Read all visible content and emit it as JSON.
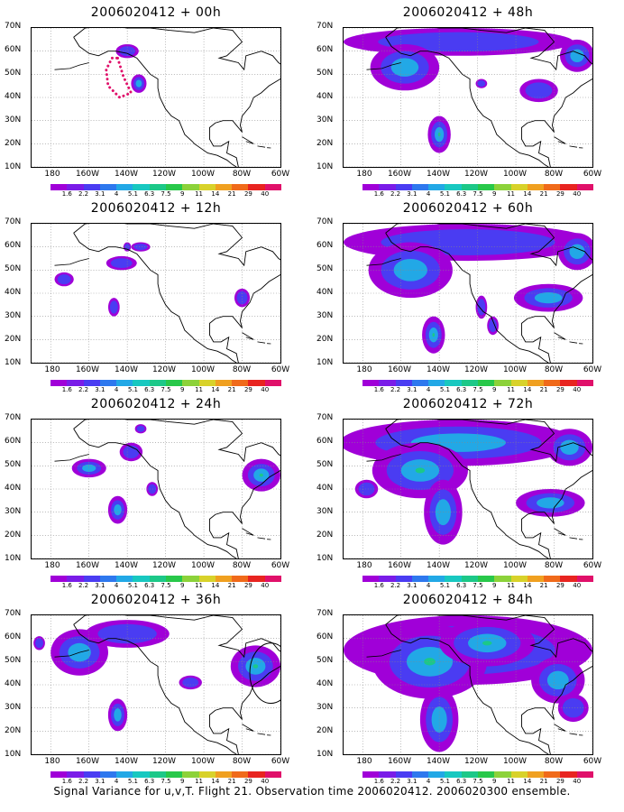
{
  "caption": "Signal Variance for u,v,T. Flight 21. Observation time 2006020412. 2006020300 ensemble.",
  "colors": {
    "scale": [
      "#a000d8",
      "#7a1ce8",
      "#4a3cf2",
      "#2e78ee",
      "#22a8e6",
      "#18c8c0",
      "#1cc888",
      "#28c84a",
      "#8cd23a",
      "#d8d22a",
      "#f0a020",
      "#f06a1a",
      "#e82420",
      "#e0106a"
    ],
    "land_outline": "#000000",
    "grid": "#888888",
    "flight_track": "#e0106a"
  },
  "colorbar_labels": [
    "1.6",
    "2.2",
    "3.1",
    "4",
    "5.1",
    "6.3",
    "7.5",
    "9",
    "11",
    "14",
    "21",
    "29",
    "40"
  ],
  "chart_data": [
    {
      "type": "heatmap",
      "title": "2006020412 + 00h",
      "x_ticks": [
        "180",
        "160W",
        "140W",
        "120W",
        "100W",
        "80W",
        "60W"
      ],
      "y_ticks": [
        "10N",
        "20N",
        "30N",
        "40N",
        "50N",
        "60N",
        "70N"
      ],
      "xlim": [
        -190,
        -60
      ],
      "ylim": [
        10,
        70
      ],
      "blobs": [
        [
          -140,
          60,
          6,
          3,
          1
        ],
        [
          -134,
          46,
          4,
          4,
          2
        ]
      ],
      "track": [
        [
          -145,
          57
        ],
        [
          -142,
          49
        ],
        [
          -138,
          42
        ],
        [
          -144,
          40
        ],
        [
          -150,
          45
        ],
        [
          -151,
          52
        ],
        [
          -148,
          57
        ],
        [
          -145,
          57
        ]
      ]
    },
    {
      "type": "heatmap",
      "title": "2006020412 + 12h",
      "x_ticks": [
        "180",
        "160W",
        "140W",
        "120W",
        "100W",
        "80W",
        "60W"
      ],
      "y_ticks": [
        "10N",
        "20N",
        "30N",
        "40N",
        "50N",
        "60N",
        "70N"
      ],
      "xlim": [
        -190,
        -60
      ],
      "ylim": [
        10,
        70
      ],
      "blobs": [
        [
          -173,
          46,
          5,
          3,
          1
        ],
        [
          -147,
          34,
          3,
          4,
          1
        ],
        [
          -143,
          53,
          8,
          3,
          1
        ],
        [
          -133,
          60,
          5,
          2,
          1
        ],
        [
          -80,
          38,
          4,
          4,
          1
        ],
        [
          -140,
          60,
          2,
          2,
          1
        ]
      ]
    },
    {
      "type": "heatmap",
      "title": "2006020412 + 24h",
      "x_ticks": [
        "180",
        "160W",
        "140W",
        "120W",
        "100W",
        "80W",
        "60W"
      ],
      "y_ticks": [
        "10N",
        "20N",
        "30N",
        "40N",
        "50N",
        "60N",
        "70N"
      ],
      "xlim": [
        -190,
        -60
      ],
      "ylim": [
        10,
        70
      ],
      "blobs": [
        [
          -160,
          49,
          9,
          4,
          2
        ],
        [
          -145,
          31,
          5,
          6,
          2
        ],
        [
          -138,
          56,
          6,
          4,
          1
        ],
        [
          -127,
          40,
          3,
          3,
          1
        ],
        [
          -70,
          46,
          10,
          7,
          3
        ],
        [
          -133,
          66,
          3,
          2,
          1
        ]
      ]
    },
    {
      "type": "heatmap",
      "title": "2006020412 + 36h",
      "x_ticks": [
        "180",
        "160W",
        "140W",
        "120W",
        "100W",
        "80W",
        "60W"
      ],
      "y_ticks": [
        "10N",
        "20N",
        "30N",
        "40N",
        "50N",
        "60N",
        "70N"
      ],
      "xlim": [
        -190,
        -60
      ],
      "ylim": [
        10,
        70
      ],
      "blobs": [
        [
          -165,
          54,
          15,
          10,
          2
        ],
        [
          -140,
          62,
          22,
          6,
          1
        ],
        [
          -145,
          27,
          5,
          7,
          2
        ],
        [
          -107,
          41,
          6,
          3,
          1
        ],
        [
          -73,
          48,
          13,
          9,
          3
        ],
        [
          -186,
          58,
          3,
          3,
          1
        ]
      ],
      "circle": [
        -65,
        45,
        11,
        13
      ]
    },
    {
      "type": "heatmap",
      "title": "2006020412 + 48h",
      "x_ticks": [
        "180",
        "160W",
        "140W",
        "120W",
        "100W",
        "80W",
        "60W"
      ],
      "y_ticks": [
        "10N",
        "20N",
        "30N",
        "40N",
        "50N",
        "60N",
        "70N"
      ],
      "xlim": [
        -190,
        -60
      ],
      "ylim": [
        10,
        70
      ],
      "blobs": [
        [
          -130,
          64,
          60,
          6,
          1
        ],
        [
          -158,
          53,
          18,
          10,
          2
        ],
        [
          -140,
          24,
          6,
          8,
          3
        ],
        [
          -88,
          43,
          10,
          5,
          1
        ],
        [
          -68,
          58,
          9,
          7,
          2
        ],
        [
          -118,
          46,
          3,
          2,
          1
        ]
      ]
    },
    {
      "type": "heatmap",
      "title": "2006020412 + 60h",
      "x_ticks": [
        "180",
        "160W",
        "140W",
        "120W",
        "100W",
        "80W",
        "60W"
      ],
      "y_ticks": [
        "10N",
        "20N",
        "30N",
        "40N",
        "50N",
        "60N",
        "70N"
      ],
      "xlim": [
        -190,
        -60
      ],
      "ylim": [
        10,
        70
      ],
      "blobs": [
        [
          -125,
          62,
          65,
          8,
          1
        ],
        [
          -155,
          50,
          22,
          12,
          2
        ],
        [
          -143,
          22,
          6,
          8,
          3
        ],
        [
          -83,
          38,
          18,
          6,
          2
        ],
        [
          -118,
          34,
          3,
          5,
          1
        ],
        [
          -112,
          26,
          3,
          4,
          1
        ],
        [
          -68,
          58,
          10,
          8,
          2
        ]
      ]
    },
    {
      "type": "heatmap",
      "title": "2006020412 + 72h",
      "x_ticks": [
        "180",
        "160W",
        "140W",
        "120W",
        "100W",
        "80W",
        "60W"
      ],
      "y_ticks": [
        "10N",
        "20N",
        "30N",
        "40N",
        "50N",
        "60N",
        "70N"
      ],
      "xlim": [
        -190,
        -60
      ],
      "ylim": [
        10,
        70
      ],
      "blobs": [
        [
          -130,
          60,
          62,
          10,
          2
        ],
        [
          -150,
          48,
          25,
          12,
          3
        ],
        [
          -138,
          30,
          10,
          14,
          2
        ],
        [
          -82,
          34,
          18,
          6,
          2
        ],
        [
          -72,
          58,
          12,
          8,
          2
        ],
        [
          -178,
          40,
          6,
          4,
          1
        ]
      ]
    },
    {
      "type": "heatmap",
      "title": "2006020412 + 84h",
      "x_ticks": [
        "180",
        "160W",
        "140W",
        "120W",
        "100W",
        "80W",
        "60W"
      ],
      "y_ticks": [
        "10N",
        "20N",
        "30N",
        "40N",
        "50N",
        "60N",
        "70N"
      ],
      "xlim": [
        -190,
        -60
      ],
      "ylim": [
        10,
        70
      ],
      "blobs": [
        [
          -125,
          55,
          65,
          15,
          2
        ],
        [
          -145,
          50,
          30,
          16,
          3
        ],
        [
          -140,
          25,
          10,
          14,
          2
        ],
        [
          -115,
          58,
          25,
          10,
          3
        ],
        [
          -78,
          42,
          14,
          10,
          2
        ],
        [
          -70,
          30,
          8,
          6,
          1
        ]
      ]
    }
  ]
}
